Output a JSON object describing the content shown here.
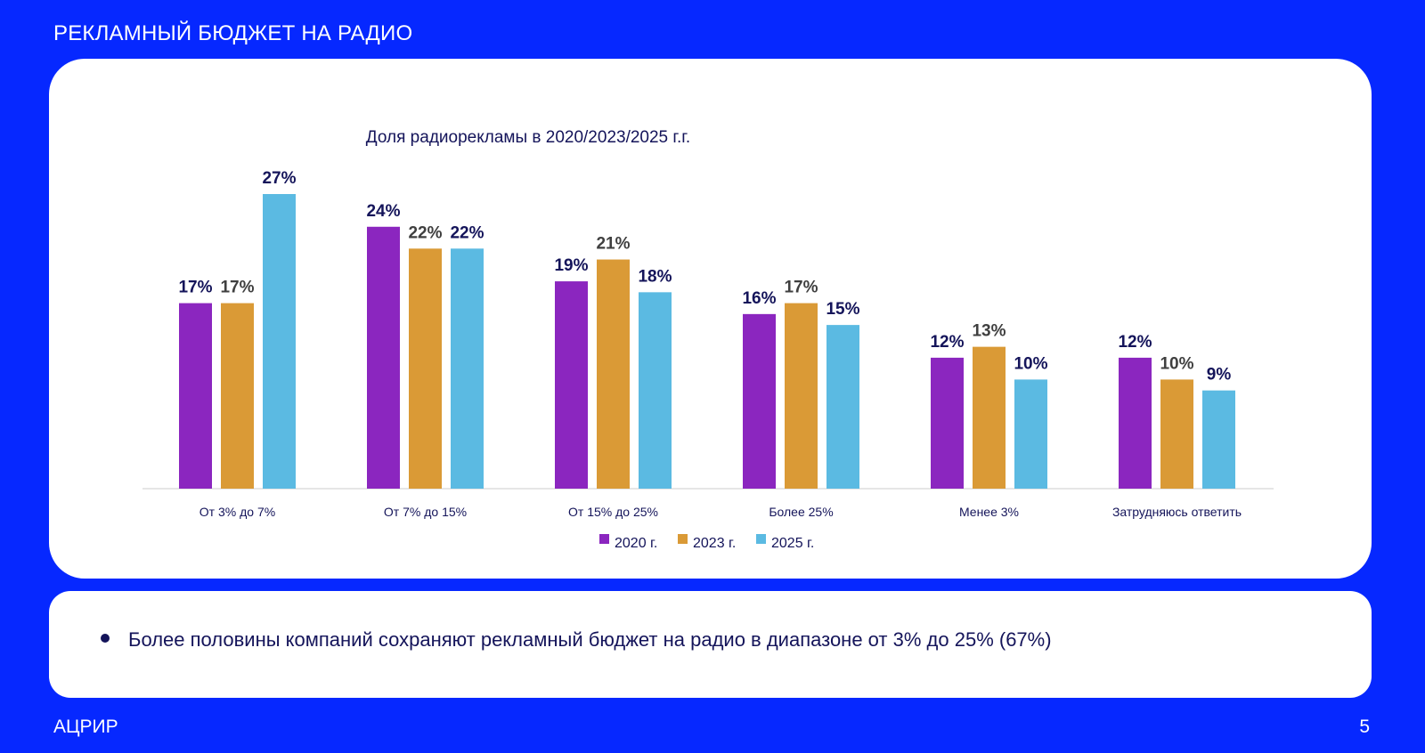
{
  "header": {
    "title": "РЕКЛАМНЫЙ БЮДЖЕТ НА РАДИО"
  },
  "chart_data": {
    "type": "bar",
    "title": "Доля радиорекламы в 2020/2023/2025 г.г.",
    "categories": [
      "От 3% до 7%",
      "От 7% до 15%",
      "От 15% до 25%",
      "Более 25%",
      "Менее 3%",
      "Затрудняюсь ответить"
    ],
    "series": [
      {
        "name": "2020 г.",
        "values": [
          17,
          24,
          19,
          16,
          12,
          12
        ],
        "labels": [
          "17%",
          "24%",
          "19%",
          "16%",
          "12%",
          "12%"
        ],
        "color": "#8B26BF",
        "label_color": "#14145A"
      },
      {
        "name": "2023 г.",
        "values": [
          17,
          22,
          21,
          17,
          13,
          10
        ],
        "labels": [
          "17%",
          "22%",
          "21%",
          "17%",
          "13%",
          "10%"
        ],
        "color": "#DA9A36",
        "label_color": "#3F3F3F"
      },
      {
        "name": "2025 г.",
        "values": [
          27,
          22,
          18,
          15,
          10,
          9
        ],
        "labels": [
          "27%",
          "22%",
          "18%",
          "15%",
          "10%",
          "9%"
        ],
        "color": "#5BBAE2",
        "label_color": "#14145A"
      }
    ],
    "ylim": [
      0,
      27
    ],
    "grid": false,
    "legend_position": "bottom"
  },
  "note": {
    "text": "Более половины компаний сохраняют рекламный бюджет на радио в диапазоне от 3% до 25% (67%)"
  },
  "footer": {
    "brand": "АЦРИР",
    "page_number": "5"
  },
  "colors": {
    "background": "#0628FF",
    "card": "#FFFFFF",
    "text_dark": "#14145A"
  }
}
